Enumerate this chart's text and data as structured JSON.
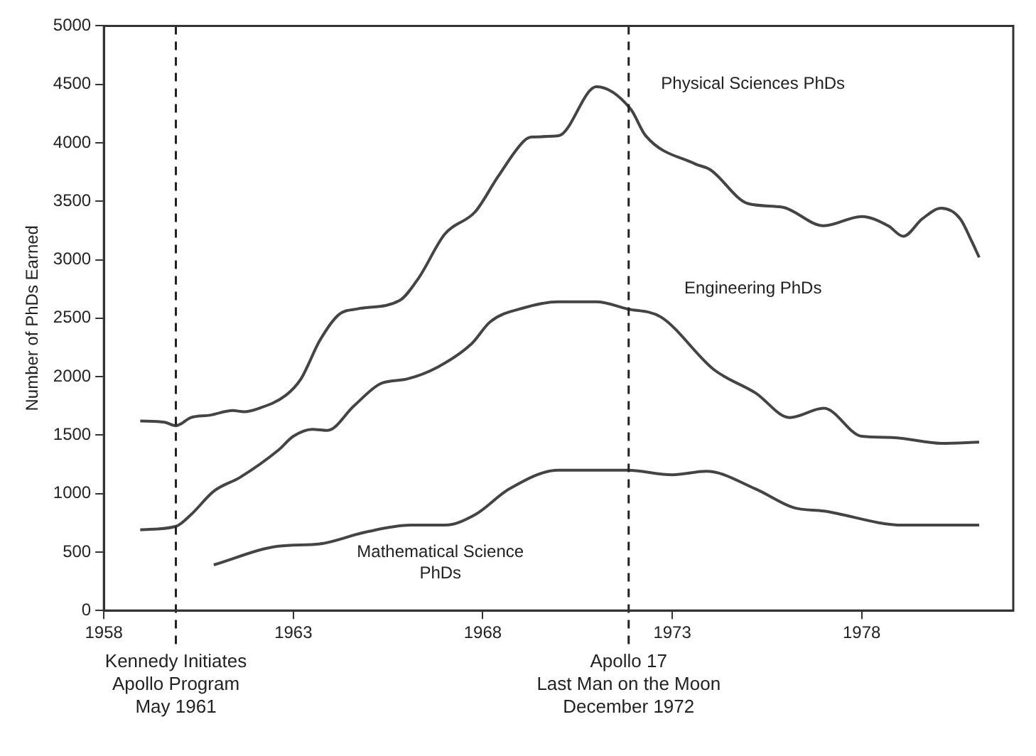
{
  "chart_data": {
    "type": "line",
    "ylabel": "Number of PhDs Earned",
    "xlim": [
      1958,
      1982
    ],
    "xticks": [
      1958,
      1963,
      1968,
      1973,
      1978
    ],
    "ylim": [
      0,
      5000
    ],
    "yticks": [
      0,
      500,
      1000,
      1500,
      2000,
      2500,
      3000,
      3500,
      4000,
      4500,
      5000
    ],
    "grid": false,
    "legend": false,
    "marker": "none",
    "line_style": "solid",
    "series": [
      {
        "name": "Physical Sciences PhDs",
        "color": "#444444",
        "x": [
          1958.96,
          1959.6,
          1959.9,
          1960.3,
          1960.8,
          1961.4,
          1961.7,
          1962.1,
          1962.8,
          1963.2,
          1963.7,
          1964.2,
          1964.7,
          1965.8,
          1966.3,
          1967.0,
          1967.8,
          1968.4,
          1969.1,
          1969.3,
          1970.0,
          1971.0,
          1971.9,
          1972.3,
          1973.6,
          1974.0,
          1975.0,
          1975.9,
          1977.0,
          1978.0,
          1978.7,
          1979.1,
          1979.6,
          1980.1,
          1980.6,
          1980.9,
          1981.1
        ],
        "values": [
          1620,
          1610,
          1580,
          1650,
          1670,
          1710,
          1700,
          1730,
          1840,
          1980,
          2310,
          2530,
          2580,
          2650,
          2840,
          3220,
          3410,
          3710,
          4020,
          4050,
          4060,
          4480,
          4290,
          4060,
          3820,
          3770,
          3480,
          3450,
          3290,
          3370,
          3290,
          3200,
          3350,
          3440,
          3350,
          3160,
          3020
        ]
      },
      {
        "name": "Engineering PhDs",
        "color": "#444444",
        "x": [
          1958.96,
          1959.9,
          1960.3,
          1960.9,
          1961.6,
          1962.6,
          1963.0,
          1963.5,
          1963.9,
          1964.6,
          1965.3,
          1966.0,
          1966.8,
          1967.7,
          1968.2,
          1969.1,
          1970.0,
          1971.0,
          1971.8,
          1972.7,
          1974.1,
          1975.2,
          1976.1,
          1977.0,
          1978.0,
          1978.8,
          1980.1,
          1981.1
        ],
        "values": [
          690,
          720,
          820,
          1020,
          1140,
          1370,
          1490,
          1550,
          1540,
          1750,
          1940,
          1980,
          2080,
          2280,
          2470,
          2590,
          2640,
          2640,
          2580,
          2510,
          2060,
          1860,
          1650,
          1730,
          1490,
          1480,
          1430,
          1440
        ]
      },
      {
        "name": "Mathematical Science\nPhDs",
        "color": "#444444",
        "x": [
          1960.9,
          1962.6,
          1963.7,
          1964.9,
          1966.1,
          1967.0,
          1967.8,
          1968.7,
          1970.0,
          1970.6,
          1971.8,
          1973.0,
          1973.9,
          1975.2,
          1976.2,
          1977.0,
          1979.1,
          1981.1
        ],
        "values": [
          390,
          550,
          570,
          670,
          730,
          730,
          820,
          1040,
          1200,
          1200,
          1200,
          1160,
          1190,
          1040,
          880,
          850,
          730,
          730
        ]
      }
    ],
    "ref_lines": [
      {
        "axis": "x",
        "value": 1959.9,
        "label": "Kennedy Initiates\nApollo Program\nMay 1961",
        "line_style": "dashed",
        "color": "#222222"
      },
      {
        "axis": "x",
        "value": 1971.85,
        "label": "Apollo 17\nLast Man on the Moon\nDecember 1972",
        "line_style": "dashed",
        "color": "#222222"
      }
    ]
  }
}
